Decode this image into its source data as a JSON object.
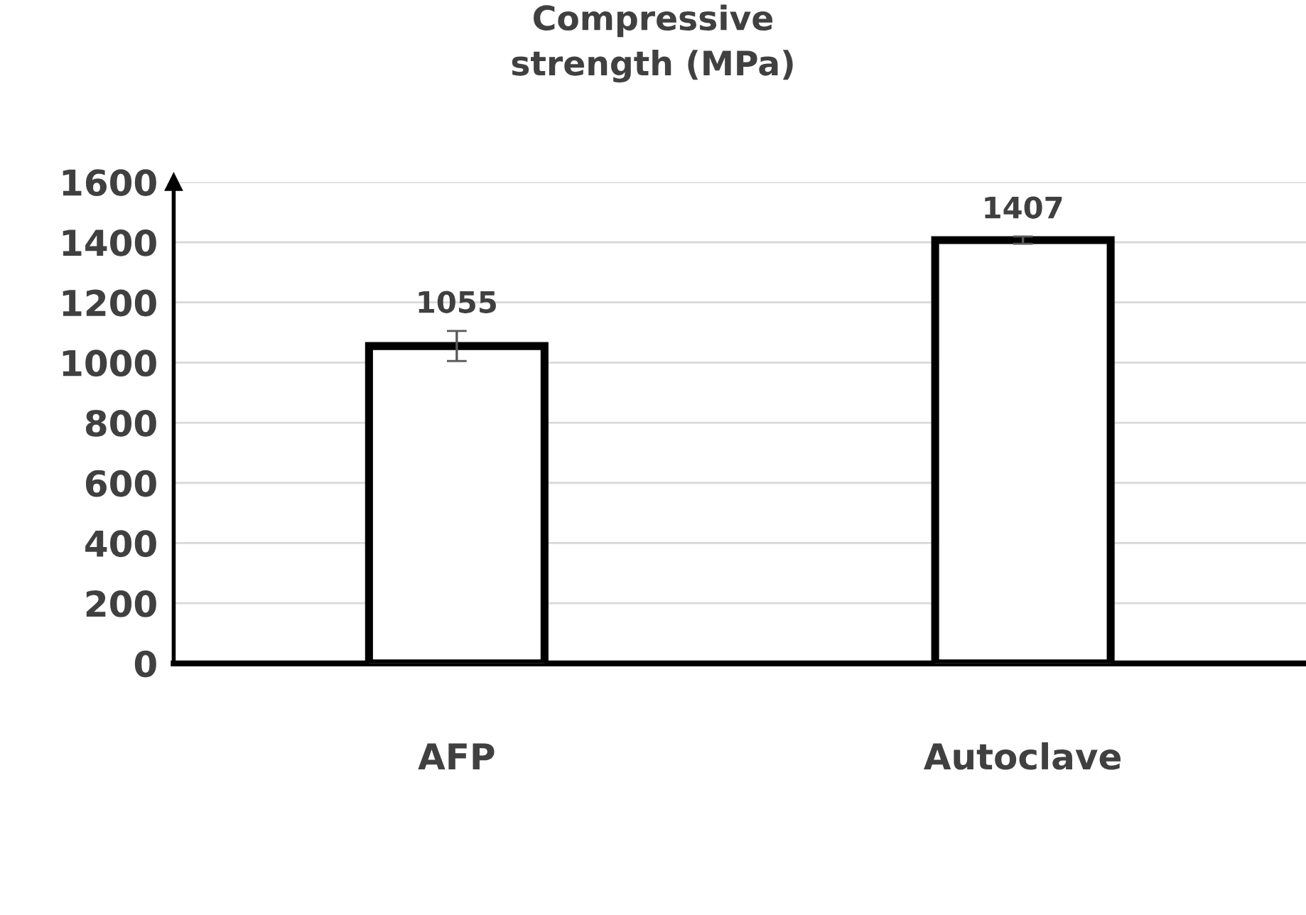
{
  "chart_data": {
    "type": "bar",
    "title": "Compressive\nstrength (MPa)",
    "categories": [
      "AFP",
      "Autoclave"
    ],
    "values": [
      1055,
      1407
    ],
    "errors": [
      50,
      12
    ],
    "color": "#ffffff",
    "data_labels": true,
    "ylim": [
      0,
      1600
    ],
    "yticks": [
      0,
      200,
      400,
      600,
      800,
      1000,
      1200,
      1400,
      1600
    ],
    "grid": "y",
    "legend": false
  }
}
